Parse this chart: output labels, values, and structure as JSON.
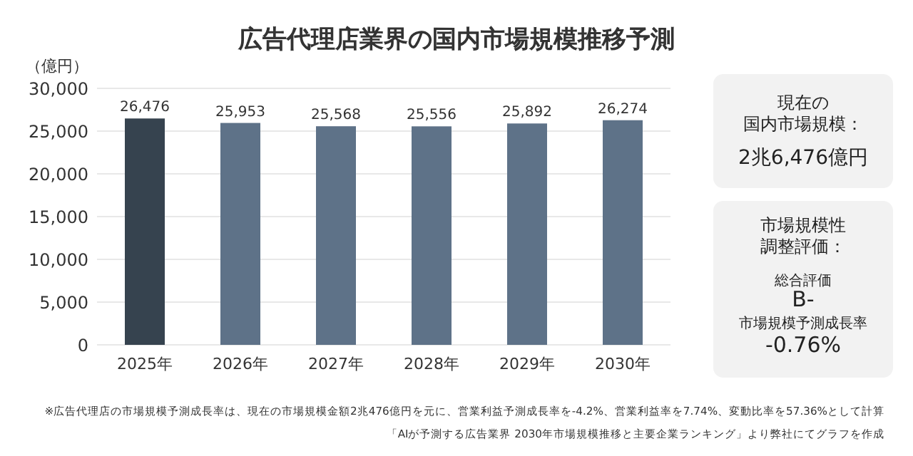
{
  "chart_data": {
    "type": "bar",
    "title": "広告代理店業界の国内市場規模推移予測",
    "ylabel": "（億円）",
    "categories": [
      "2025年",
      "2026年",
      "2027年",
      "2028年",
      "2029年",
      "2030年"
    ],
    "values": [
      26476,
      25953,
      25568,
      25556,
      25892,
      26274
    ],
    "colors": [
      "#36434f",
      "#5e7288",
      "#5e7288",
      "#5e7288",
      "#5e7288",
      "#5e7288"
    ],
    "ylim": [
      0,
      30000
    ],
    "yticks": [
      {
        "value": 0,
        "label": "0"
      },
      {
        "value": 5000,
        "label": "5,000"
      },
      {
        "value": 10000,
        "label": "10,000"
      },
      {
        "value": 15000,
        "label": "15,000"
      },
      {
        "value": 20000,
        "label": "20,000"
      },
      {
        "value": 25000,
        "label": "25,000"
      },
      {
        "value": 30000,
        "label": "30,000"
      }
    ],
    "value_labels": [
      "26,476",
      "25,953",
      "25,568",
      "25,556",
      "25,892",
      "26,274"
    ],
    "grid": "y",
    "annotations": [
      "現在の",
      "国内市場規模：",
      "2兆6,476億円",
      "市場規模性",
      "調整評価：",
      "総合評価",
      "B-",
      "市場規模予測成長率",
      "-0.76%",
      "※広告代理店の市場規模予測成長率は、現在の市場規模金額2兆476億円を元に、営業利益予測成長率を-4.2%、営業利益率を7.74%、変動比率を57.36%として計算",
      "「AIが予測する広告業界 2030年市場規模推移と主要企業ランキング」より弊社にてグラフを作成"
    ]
  }
}
